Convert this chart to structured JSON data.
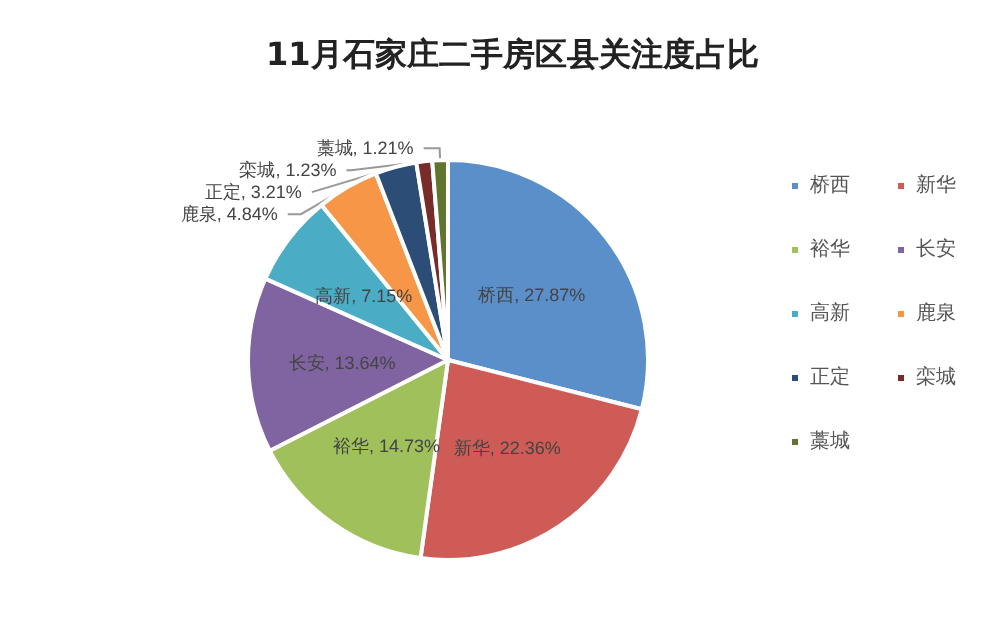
{
  "chart_data": {
    "type": "pie",
    "title": "11月石家庄二手房区县关注度占比",
    "categories": [
      "桥西",
      "新华",
      "裕华",
      "长安",
      "高新",
      "鹿泉",
      "正定",
      "栾城",
      "藁城"
    ],
    "values": [
      27.87,
      22.36,
      14.73,
      13.64,
      7.15,
      4.84,
      3.21,
      1.23,
      1.21
    ],
    "colors": [
      "#5b8fc9",
      "#cf5b57",
      "#9fc05a",
      "#8064a2",
      "#4bacc6",
      "#f79646",
      "#2c4d75",
      "#772c2a",
      "#5f7530"
    ],
    "value_labels": [
      ", 27.87%",
      ", 22.36%",
      ", 14.73%",
      ", 13.64%",
      ", 7.15%",
      ", 4.84%",
      ", 3.21%",
      ", 1.23%",
      ", 1.21%"
    ],
    "legend": "right"
  }
}
